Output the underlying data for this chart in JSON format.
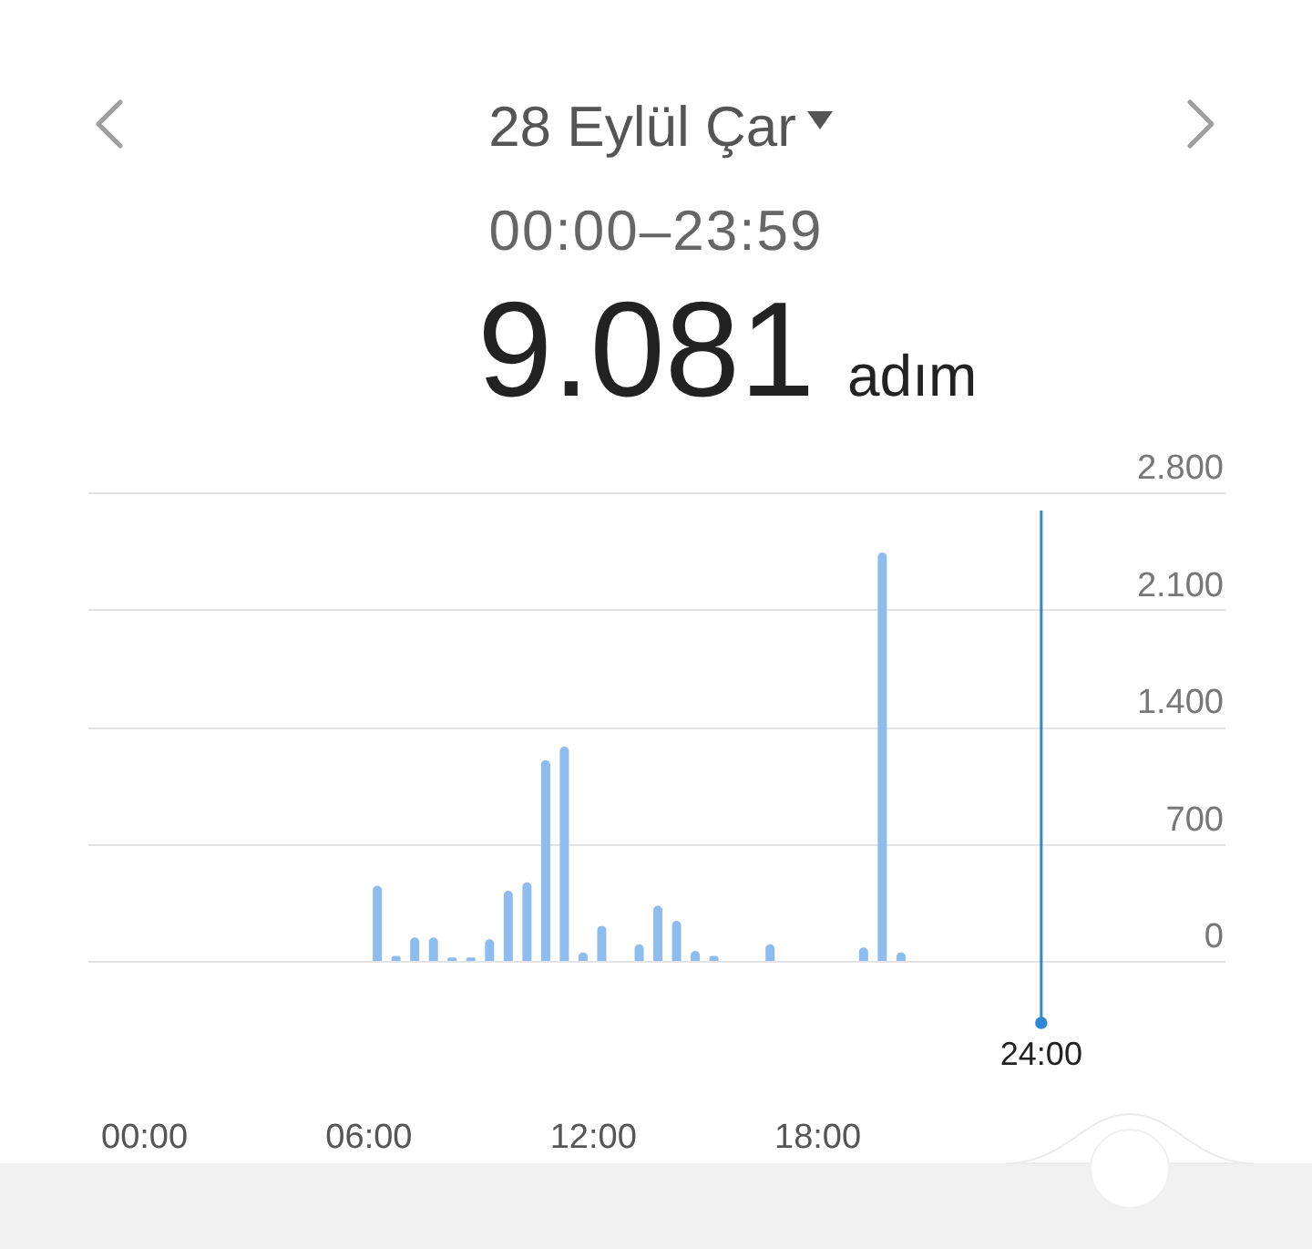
{
  "chart_data": {
    "type": "bar",
    "title": "28 Eylül Çar",
    "subtitle": "00:00–23:59",
    "annotations": [
      "9.081",
      "adım"
    ],
    "x": [
      6.25,
      6.75,
      7.25,
      7.75,
      8.25,
      8.75,
      9.25,
      9.75,
      10.25,
      10.75,
      11.25,
      11.75,
      12.25,
      13.25,
      13.75,
      14.25,
      14.75,
      15.25,
      16.75,
      19.25,
      19.75,
      20.25
    ],
    "values": [
      450,
      30,
      140,
      140,
      20,
      20,
      130,
      420,
      470,
      1200,
      1280,
      50,
      210,
      100,
      330,
      240,
      60,
      30,
      100,
      80,
      2440,
      50
    ],
    "color": "#8dbdee",
    "xlim": [
      -1.5,
      28.9
    ],
    "xticks": [
      {
        "value": 0,
        "label": "00:00"
      },
      {
        "value": 6,
        "label": "06:00"
      },
      {
        "value": 12,
        "label": "12:00"
      },
      {
        "value": 18,
        "label": "18:00"
      }
    ],
    "ylim": [
      0,
      2800
    ],
    "yticks": [
      0,
      700,
      {
        "value": 1400,
        "label": "1.400"
      },
      {
        "value": 2100,
        "label": "2.100"
      },
      {
        "value": 2800,
        "label": "2.800"
      }
    ],
    "grid": "y",
    "ref_lines": [
      {
        "axis": "x",
        "value": 24,
        "label": "24:00",
        "color": "#2f86d6"
      }
    ]
  }
}
